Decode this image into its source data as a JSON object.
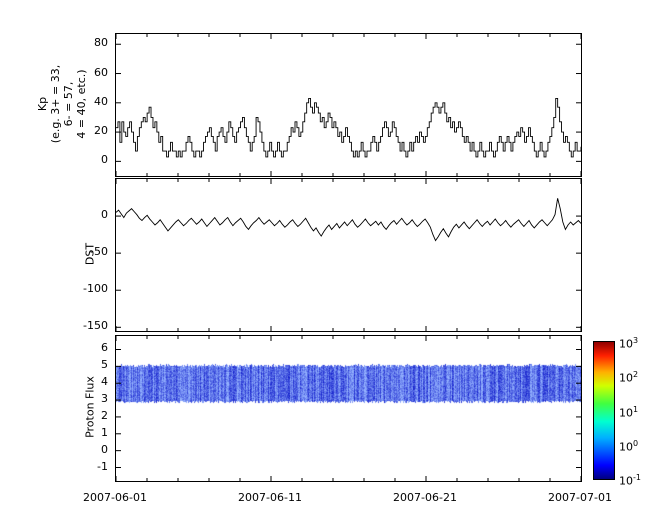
{
  "figure": {
    "bg": "#ffffff",
    "line_color": "#000000",
    "x_tick_labels": [
      "2007-06-01",
      "2007-06-11",
      "2007-06-21",
      "2007-07-01"
    ]
  },
  "chart_data": [
    {
      "type": "line",
      "name": "kp",
      "ylabel_lines": [
        "Kp",
        "(e.g. 3+ = 33,",
        "6- = 57,",
        "4 = 40, etc.)"
      ],
      "x_start": "2007-06-01",
      "x_end": "2007-07-01",
      "x_cadence_hours": 3,
      "line_style": "step",
      "yticks": [
        0,
        20,
        40,
        60,
        80
      ],
      "ylim": [
        -10,
        87
      ],
      "values": [
        23,
        27,
        13,
        27,
        20,
        17,
        23,
        27,
        20,
        13,
        7,
        17,
        23,
        27,
        30,
        27,
        33,
        37,
        30,
        23,
        27,
        20,
        13,
        17,
        7,
        7,
        3,
        7,
        13,
        7,
        7,
        3,
        7,
        3,
        7,
        7,
        13,
        17,
        13,
        7,
        3,
        7,
        7,
        3,
        7,
        13,
        17,
        20,
        23,
        17,
        13,
        7,
        17,
        20,
        23,
        17,
        13,
        20,
        27,
        23,
        17,
        13,
        20,
        23,
        27,
        30,
        23,
        17,
        13,
        7,
        13,
        17,
        30,
        27,
        20,
        13,
        7,
        3,
        7,
        13,
        7,
        3,
        7,
        13,
        7,
        3,
        7,
        7,
        13,
        17,
        23,
        20,
        27,
        23,
        17,
        20,
        27,
        33,
        40,
        43,
        37,
        33,
        40,
        37,
        33,
        27,
        30,
        23,
        27,
        33,
        30,
        23,
        27,
        23,
        17,
        20,
        13,
        17,
        23,
        17,
        13,
        7,
        3,
        7,
        3,
        7,
        13,
        7,
        3,
        7,
        7,
        13,
        17,
        13,
        7,
        13,
        17,
        23,
        27,
        23,
        17,
        20,
        27,
        23,
        17,
        13,
        7,
        13,
        7,
        3,
        7,
        13,
        7,
        13,
        17,
        13,
        20,
        17,
        13,
        17,
        23,
        27,
        33,
        37,
        40,
        37,
        33,
        37,
        40,
        33,
        27,
        30,
        23,
        27,
        20,
        23,
        27,
        23,
        17,
        13,
        17,
        13,
        7,
        13,
        7,
        3,
        7,
        13,
        7,
        3,
        7,
        7,
        13,
        7,
        3,
        7,
        13,
        17,
        13,
        7,
        13,
        17,
        13,
        7,
        13,
        17,
        20,
        17,
        23,
        20,
        13,
        17,
        23,
        17,
        13,
        7,
        3,
        7,
        13,
        7,
        3,
        7,
        13,
        17,
        23,
        30,
        43,
        37,
        27,
        20,
        13,
        17,
        13,
        7,
        3,
        7,
        13,
        7,
        7,
        10
      ]
    },
    {
      "type": "line",
      "name": "dst",
      "ylabel": "DST",
      "x_start": "2007-06-01",
      "x_end": "2007-07-01",
      "x_cadence_hours": 4,
      "line_style": "line",
      "yticks": [
        0,
        -50,
        -100,
        -150
      ],
      "ylim": [
        -155,
        50
      ],
      "values": [
        5,
        8,
        3,
        -2,
        4,
        7,
        10,
        6,
        2,
        -3,
        -6,
        -2,
        1,
        -4,
        -8,
        -12,
        -9,
        -5,
        -10,
        -15,
        -20,
        -16,
        -12,
        -8,
        -5,
        -9,
        -13,
        -10,
        -6,
        -3,
        -7,
        -11,
        -8,
        -4,
        -9,
        -14,
        -10,
        -6,
        -2,
        -7,
        -12,
        -9,
        -5,
        -2,
        -8,
        -13,
        -9,
        -6,
        -3,
        -8,
        -14,
        -18,
        -13,
        -9,
        -6,
        -2,
        -7,
        -11,
        -8,
        -5,
        -9,
        -13,
        -10,
        -6,
        -11,
        -15,
        -12,
        -8,
        -5,
        -10,
        -14,
        -11,
        -7,
        -3,
        -9,
        -15,
        -20,
        -16,
        -22,
        -27,
        -21,
        -16,
        -12,
        -18,
        -14,
        -10,
        -16,
        -12,
        -8,
        -13,
        -9,
        -5,
        -11,
        -15,
        -12,
        -8,
        -4,
        -9,
        -13,
        -10,
        -7,
        -12,
        -8,
        -14,
        -18,
        -13,
        -9,
        -6,
        -11,
        -7,
        -3,
        -8,
        -12,
        -9,
        -5,
        -10,
        -14,
        -11,
        -7,
        -4,
        -9,
        -15,
        -25,
        -33,
        -28,
        -22,
        -17,
        -23,
        -28,
        -21,
        -15,
        -11,
        -16,
        -12,
        -8,
        -13,
        -17,
        -13,
        -9,
        -5,
        -10,
        -14,
        -10,
        -7,
        -12,
        -8,
        -4,
        -9,
        -13,
        -10,
        -6,
        -11,
        -15,
        -11,
        -8,
        -5,
        -10,
        -14,
        -10,
        -6,
        -12,
        -16,
        -12,
        -8,
        -5,
        -9,
        -13,
        -9,
        -5,
        2,
        24,
        10,
        -8,
        -18,
        -12,
        -8,
        -12,
        -9,
        -6,
        -10
      ]
    },
    {
      "type": "heatmap",
      "name": "proton_flux",
      "ylabel": "Proton Flux",
      "yticks": [
        -1,
        0,
        1,
        2,
        3,
        4,
        5,
        6
      ],
      "ylim": [
        -1.8,
        6.8
      ],
      "band": {
        "y_min": 2.95,
        "y_max": 5.05,
        "flux_min": 0.08,
        "flux_max": 0.6
      },
      "colorbar": {
        "scale": "log",
        "tick_exponents": [
          3,
          2,
          1,
          0,
          -1
        ],
        "range": [
          0.1,
          1000
        ],
        "colormap": "jet",
        "gradient_stops": [
          {
            "pos": 0.0,
            "color": "#000080"
          },
          {
            "pos": 0.1,
            "color": "#0000ff"
          },
          {
            "pos": 0.3,
            "color": "#00b0ff"
          },
          {
            "pos": 0.42,
            "color": "#00ffd0"
          },
          {
            "pos": 0.55,
            "color": "#40ff40"
          },
          {
            "pos": 0.68,
            "color": "#d0ff00"
          },
          {
            "pos": 0.78,
            "color": "#ffb000"
          },
          {
            "pos": 0.9,
            "color": "#ff2000"
          },
          {
            "pos": 1.0,
            "color": "#900000"
          }
        ]
      }
    }
  ]
}
